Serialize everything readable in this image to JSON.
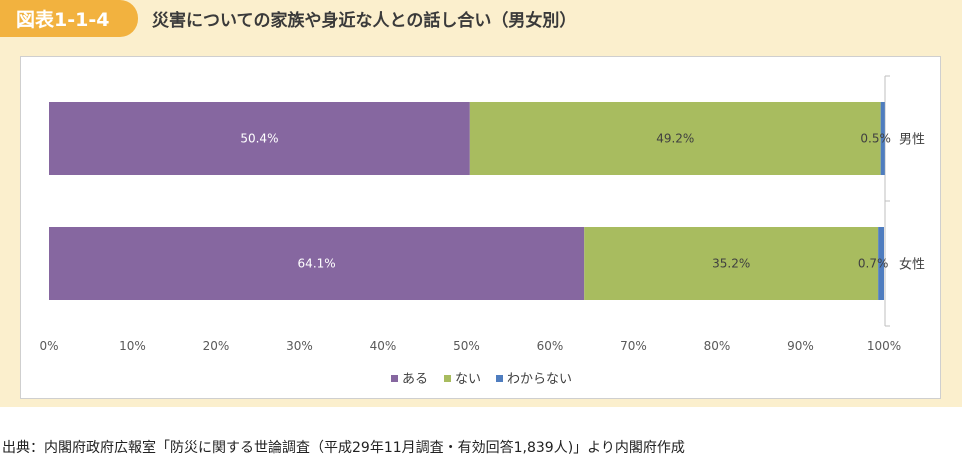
{
  "header": {
    "figure_number": "図表1-1-4",
    "title": "災害についての家族や身近な人との話し合い（男女別）"
  },
  "source": "出典：内閣府政府広報室「防災に関する世論調査（平成29年11月調査・有効回答1,839人)」より内閣府作成",
  "colors": {
    "header_tag": "#f2b23f",
    "header_band": "#fbefcd",
    "aru": "#8667a0",
    "nai": "#a8bc5f",
    "wakaranai": "#4f7dbf"
  },
  "chart_data": {
    "type": "bar",
    "orientation": "horizontal",
    "stacked": "100%",
    "categories": [
      "男性",
      "女性"
    ],
    "series": [
      {
        "name": "ある",
        "values": [
          50.4,
          64.1
        ],
        "labels": [
          "50.4%",
          "64.1%"
        ],
        "color": "#8667a0"
      },
      {
        "name": "ない",
        "values": [
          49.2,
          35.2
        ],
        "labels": [
          "49.2%",
          "35.2%"
        ],
        "color": "#a8bc5f"
      },
      {
        "name": "わからない",
        "values": [
          0.5,
          0.7
        ],
        "labels": [
          "0.5%",
          "0.7%"
        ],
        "color": "#4f7dbf"
      }
    ],
    "xlim": [
      0,
      100
    ],
    "xticks": [
      "0%",
      "10%",
      "20%",
      "30%",
      "40%",
      "50%",
      "60%",
      "70%",
      "80%",
      "90%",
      "100%"
    ],
    "grid": false,
    "legend": "bottom"
  }
}
